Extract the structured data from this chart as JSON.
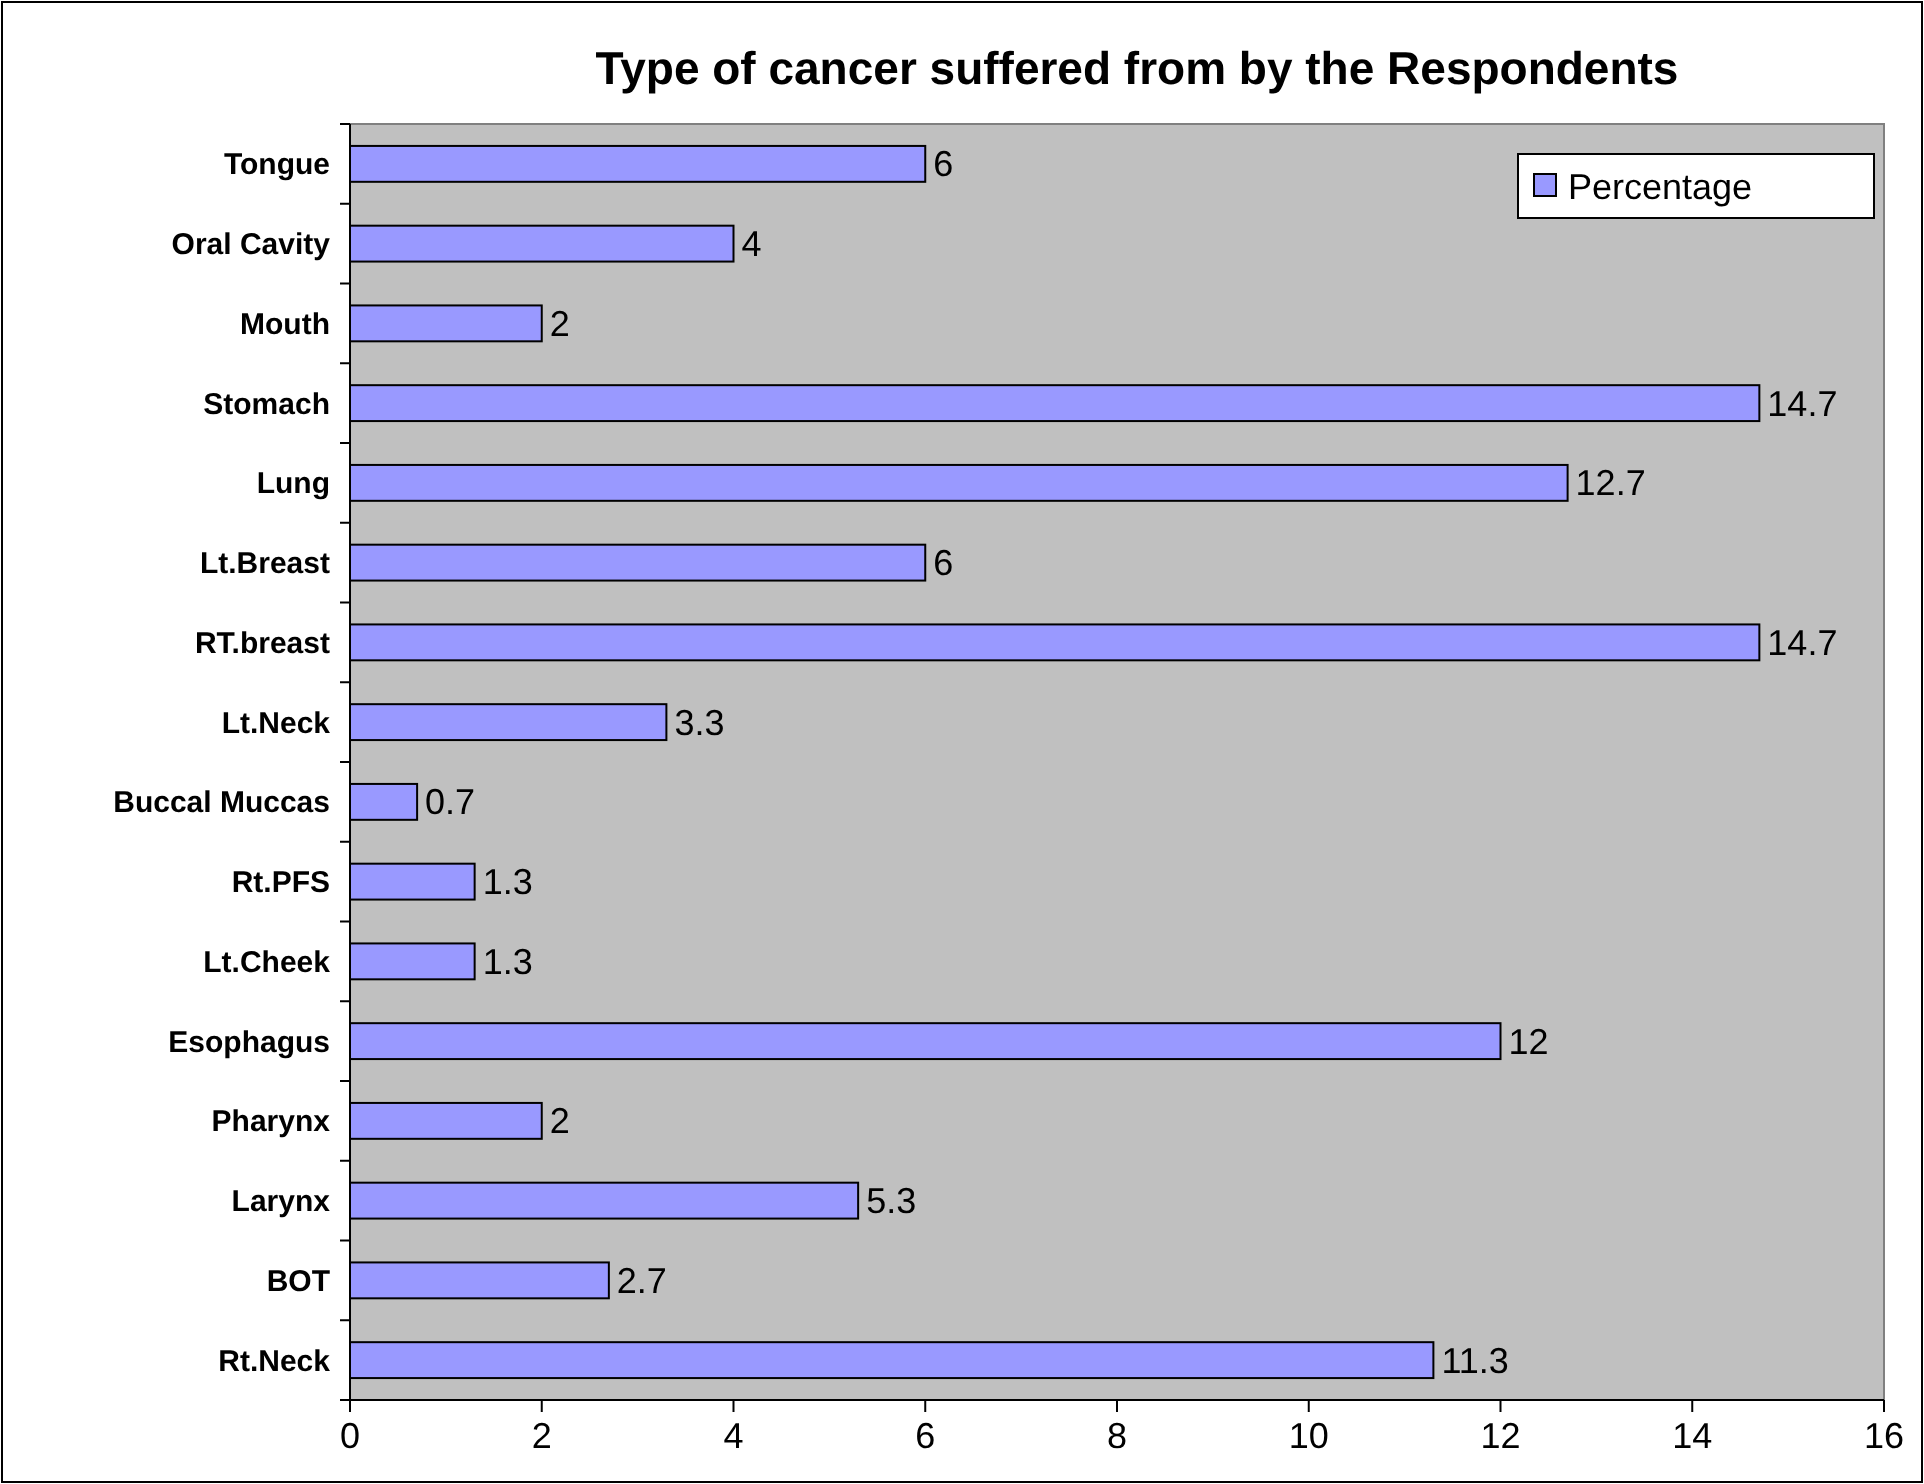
{
  "chart_data": {
    "type": "bar",
    "orientation": "horizontal",
    "title": "Type of cancer suffered from by the Respondents",
    "categories": [
      "Tongue",
      "Oral Cavity",
      "Mouth",
      "Stomach",
      "Lung",
      "Lt.Breast",
      "RT.breast",
      "Lt.Neck",
      "Buccal Muccas",
      "Rt.PFS",
      "Lt.Cheek",
      "Esophagus",
      "Pharynx",
      "Larynx",
      "BOT",
      "Rt.Neck"
    ],
    "series": [
      {
        "name": "Percentage",
        "color": "#9999ff",
        "values": [
          6,
          4,
          2,
          14.7,
          12.7,
          6,
          14.7,
          3.3,
          0.7,
          1.3,
          1.3,
          12,
          2,
          5.3,
          2.7,
          11.3
        ]
      }
    ],
    "xlim": [
      0,
      16
    ],
    "xticks": [
      0,
      2,
      4,
      6,
      8,
      10,
      12,
      14,
      16
    ],
    "grid": false,
    "legend": "top right",
    "data_labels": true
  }
}
